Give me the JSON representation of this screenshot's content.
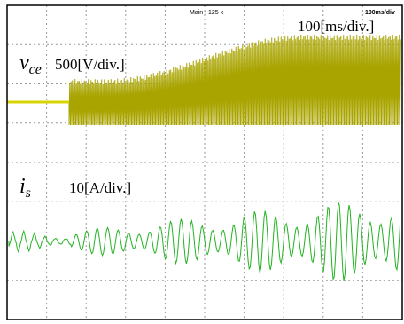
{
  "header": {
    "sample_rate": "Main : 125 k",
    "timebase_small": "100ms/div",
    "timebase": "100[ms/div.]"
  },
  "traces": [
    {
      "symbol": "v",
      "subscript": "ce",
      "scale": "500[V/div.]"
    },
    {
      "symbol": "i",
      "subscript": "s",
      "scale": "10[A/div.]"
    }
  ]
}
